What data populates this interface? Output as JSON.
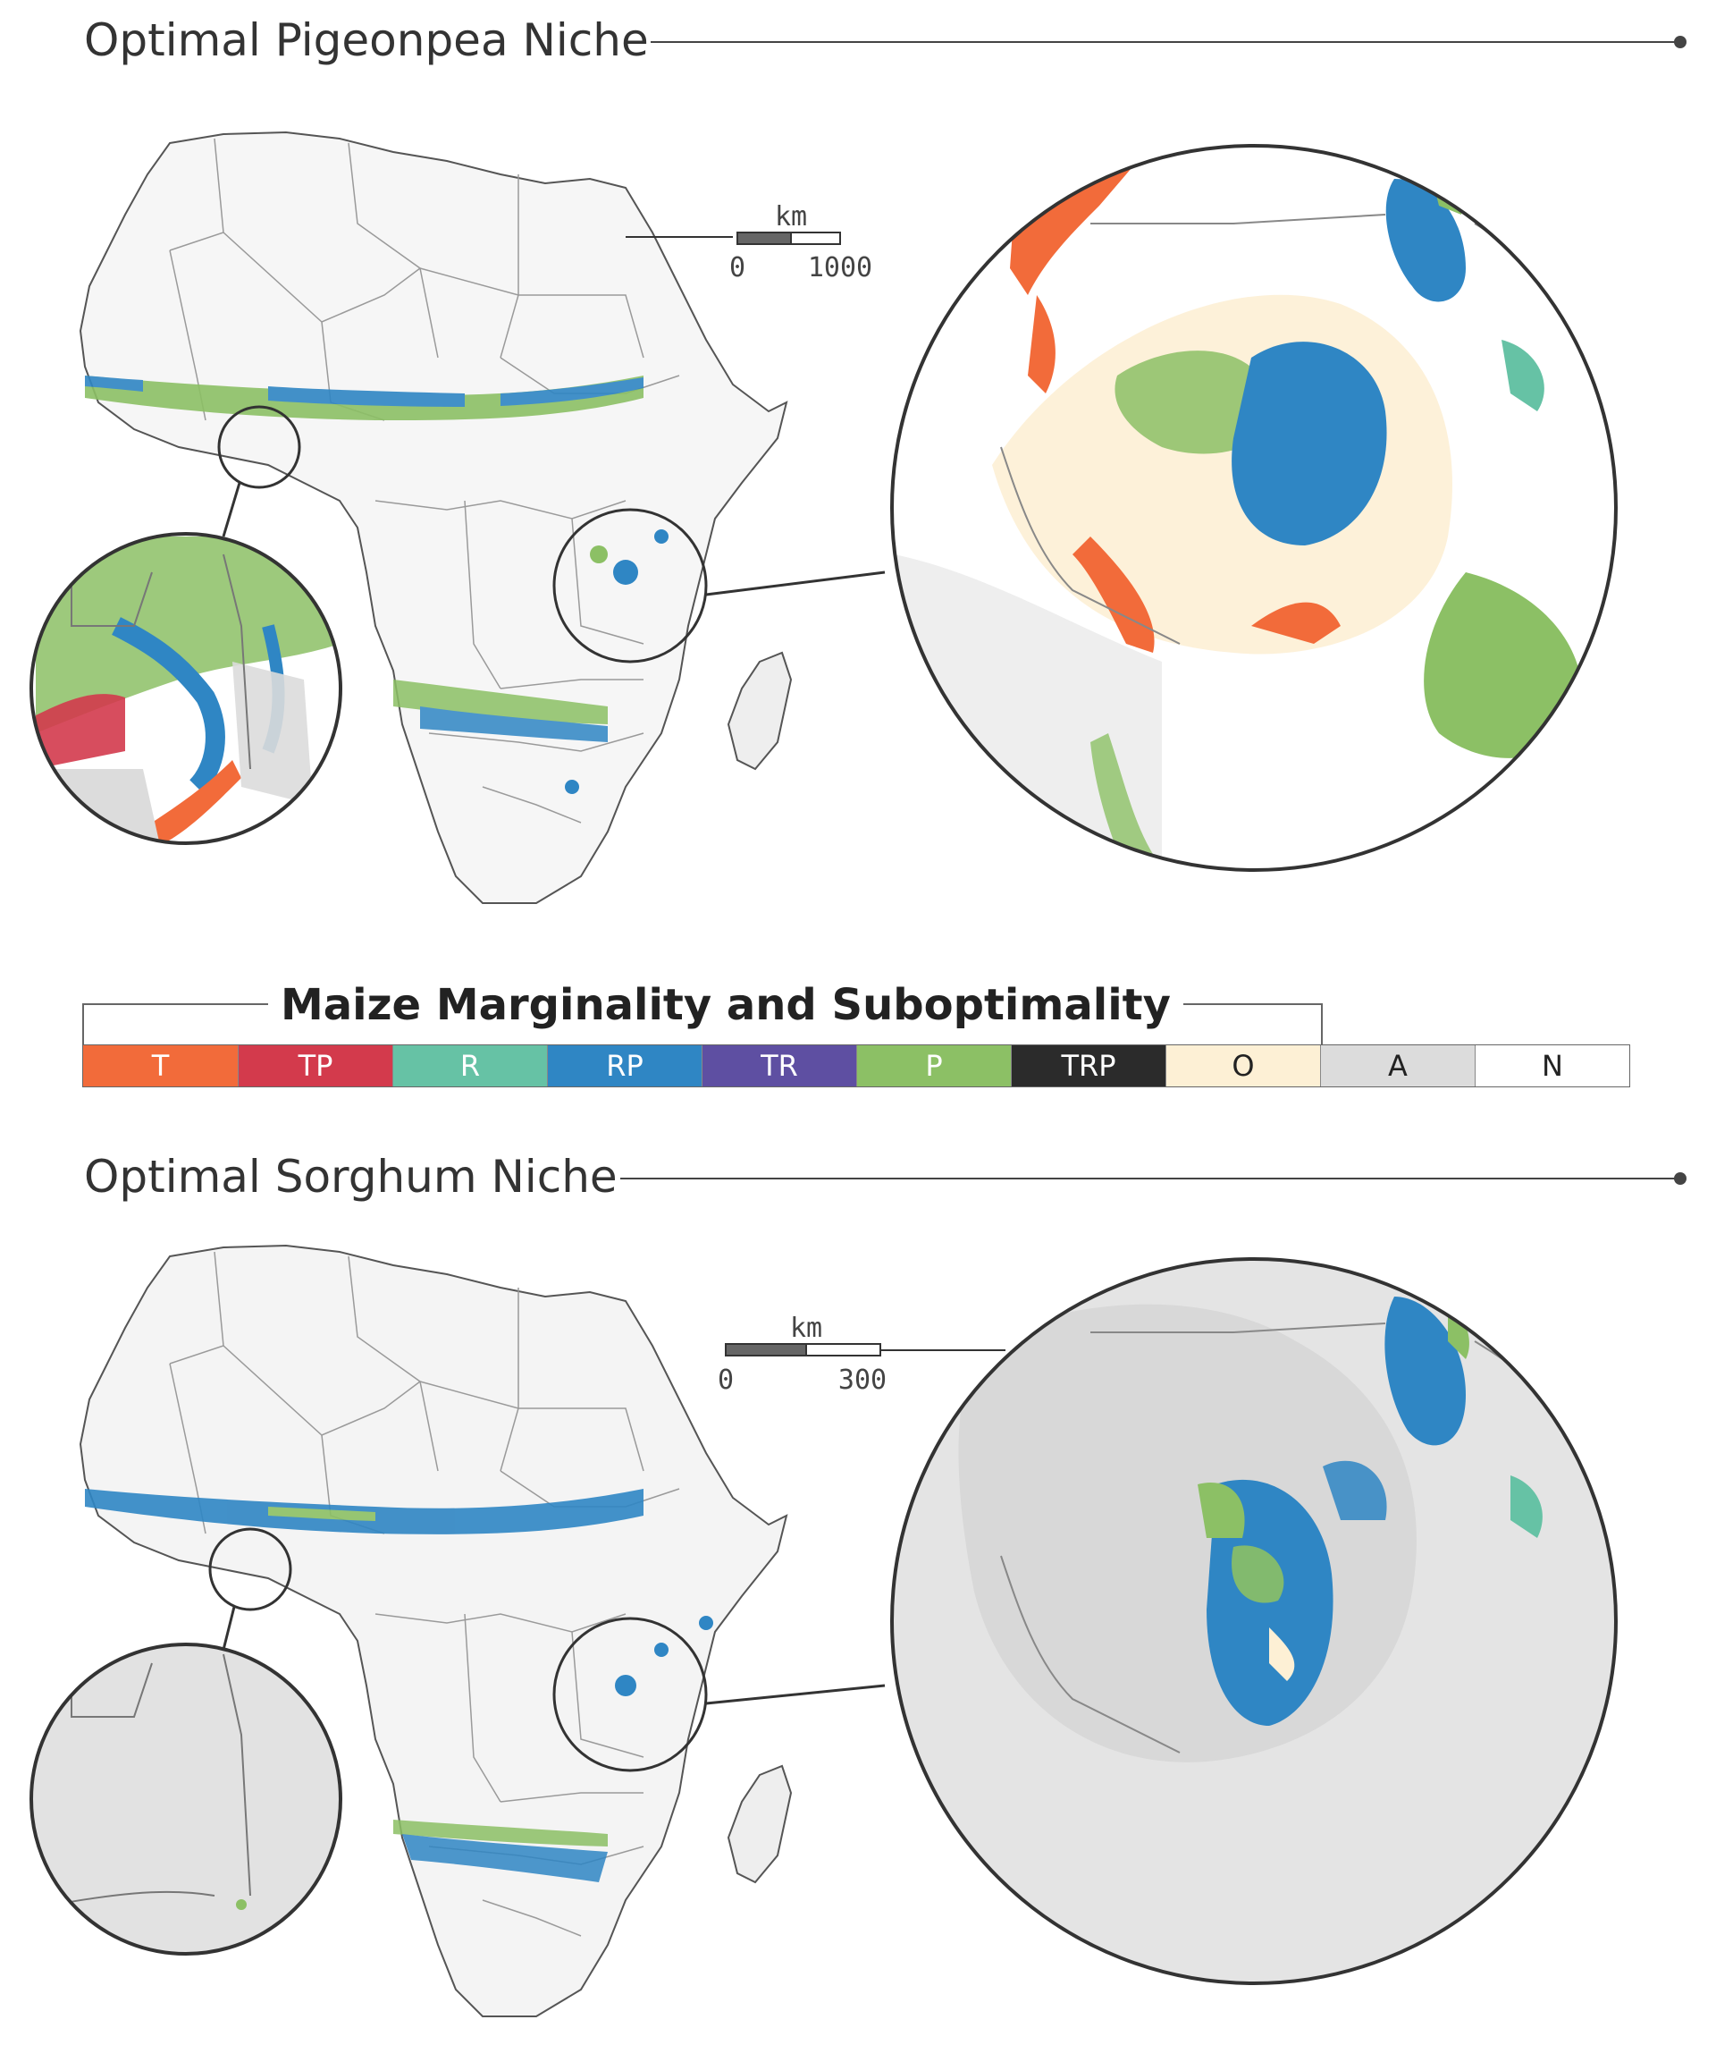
{
  "top": {
    "title": "Optimal Pigeonpea Niche",
    "scale_unit": "km",
    "scale_min": "0",
    "scale_max": "1000"
  },
  "legend": {
    "title": "Maize Marginality and Suboptimality",
    "items": [
      {
        "code": "T",
        "color": "#f26b3a",
        "text": "#ffffff"
      },
      {
        "code": "TP",
        "color": "#d33a4c",
        "text": "#ffffff"
      },
      {
        "code": "R",
        "color": "#66c2a5",
        "text": "#ffffff"
      },
      {
        "code": "RP",
        "color": "#2f86c4",
        "text": "#ffffff"
      },
      {
        "code": "TR",
        "color": "#5e4fa2",
        "text": "#ffffff"
      },
      {
        "code": "P",
        "color": "#8cc065",
        "text": "#ffffff"
      },
      {
        "code": "TRP",
        "color": "#2b2b2b",
        "text": "#ffffff"
      },
      {
        "code": "O",
        "color": "#fdf0d5",
        "text": "#222222"
      },
      {
        "code": "A",
        "color": "#dcdcdc",
        "text": "#222222"
      },
      {
        "code": "N",
        "color": "#ffffff",
        "text": "#222222"
      }
    ]
  },
  "bottom": {
    "title": "Optimal Sorghum Niche",
    "scale_unit": "km",
    "scale_min": "0",
    "scale_max": "300"
  }
}
